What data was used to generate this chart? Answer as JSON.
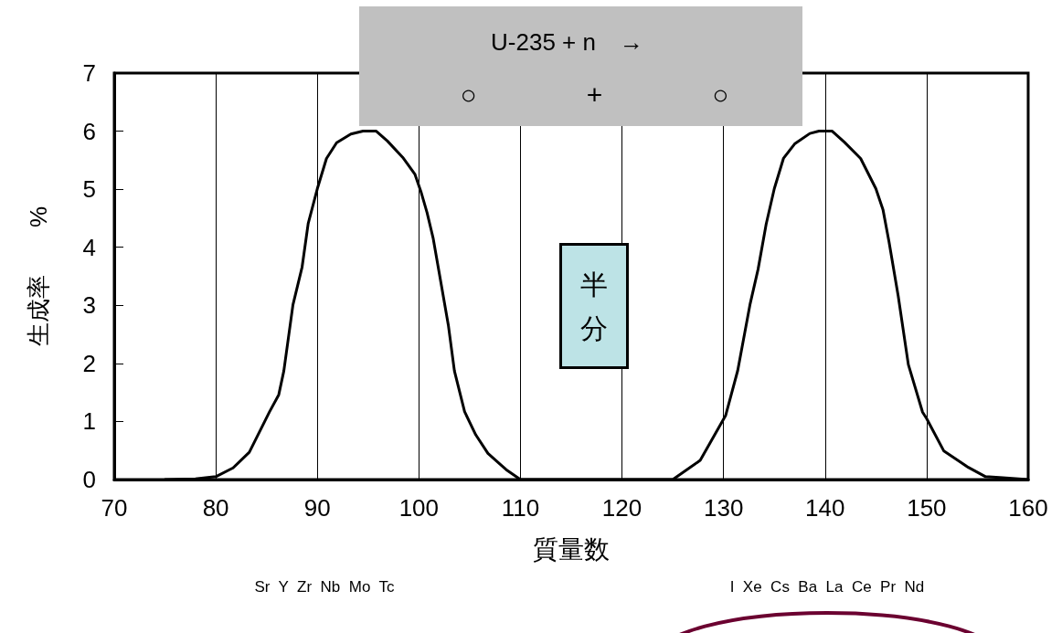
{
  "chart_data": {
    "type": "line",
    "xlabel": "質量数",
    "ylabel": "生成率　　%",
    "x": [
      75,
      78,
      80,
      81.7,
      83.3,
      85.3,
      86.2,
      86.7,
      87.6,
      88.5,
      89.1,
      90,
      90.9,
      91.9,
      93.3,
      94.5,
      95.8,
      96.9,
      98.4,
      99.6,
      100.2,
      100.8,
      101.4,
      102.3,
      102.9,
      103.5,
      104.5,
      105.6,
      106.8,
      108.6,
      110,
      115,
      120,
      125,
      127.7,
      130.2,
      130.6,
      131.4,
      132.6,
      133.4,
      134.2,
      135,
      135.9,
      137,
      138.5,
      139.4,
      140.7,
      141.9,
      143.5,
      145,
      145.7,
      146.3,
      147.2,
      148.2,
      149.6,
      150,
      151.7,
      154.1,
      155.8,
      157.5,
      160
    ],
    "values": [
      0,
      0.01,
      0.05,
      0.2,
      0.47,
      1.17,
      1.46,
      1.87,
      3.01,
      3.66,
      4.41,
      5.01,
      5.53,
      5.8,
      5.95,
      6,
      6,
      5.83,
      5.55,
      5.26,
      4.96,
      4.6,
      4.16,
      3.26,
      2.66,
      1.87,
      1.17,
      0.77,
      0.45,
      0.17,
      0,
      0,
      0,
      0,
      0.33,
      1.1,
      1.36,
      1.88,
      3.01,
      3.62,
      4.4,
      5.01,
      5.53,
      5.78,
      5.96,
      6,
      6,
      5.81,
      5.53,
      5.01,
      4.65,
      4.09,
      3.16,
      1.98,
      1.16,
      1.05,
      0.49,
      0.21,
      0.05,
      0.03,
      0
    ],
    "color": "#000000",
    "marker": "none",
    "line_style": "solid",
    "grid": "x",
    "xlim": [
      70,
      160
    ],
    "xticks": [
      70,
      80,
      90,
      100,
      110,
      120,
      130,
      140,
      150,
      160
    ],
    "ylim": [
      0,
      7
    ],
    "yticks": [
      0,
      1,
      2,
      3,
      4,
      5,
      6,
      7
    ],
    "annotations": [
      "U-235 + n　→",
      "○　　　　+　　　　○",
      "半分",
      "Sr  Y  Zr  Nb  Mo  Tc",
      "I  Xe  Cs  Ba  La  Ce  Pr  Nd"
    ]
  }
}
